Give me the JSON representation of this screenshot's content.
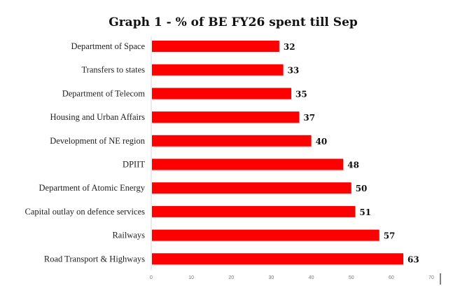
{
  "chart_data": {
    "type": "bar",
    "orientation": "horizontal",
    "title": "Graph 1 - % of BE FY26 spent till Sep",
    "xlabel": "",
    "ylabel": "",
    "categories": [
      "Department of Space",
      "Transfers to states",
      "Department of Telecom",
      "Housing and Urban Affairs",
      "Development of NE region",
      "DPIIT",
      "Department of Atomic Energy",
      "Capital outlay on defence services",
      "Railways",
      "Road Transport & Highways"
    ],
    "values": [
      32,
      33,
      35,
      37,
      40,
      48,
      50,
      51,
      57,
      63
    ],
    "xlim": [
      0,
      70
    ],
    "xticks": [
      0,
      10,
      20,
      30,
      40,
      50,
      60,
      70
    ],
    "grid": false,
    "legend": "none",
    "bar_color": "#ff0000"
  }
}
